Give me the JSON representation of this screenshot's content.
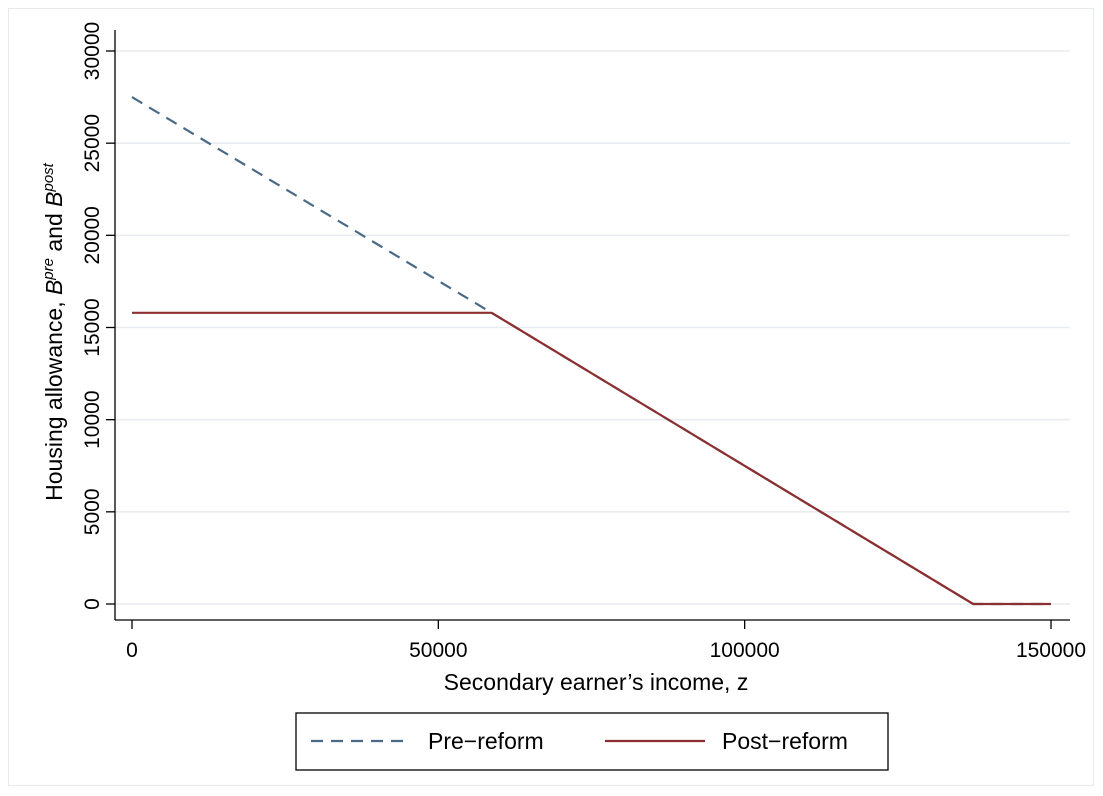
{
  "chart_data": {
    "type": "line",
    "xlabel": "Secondary earner’s income, z",
    "ylabel": "Housing allowance, B^pre and B^post",
    "ylabel_parts": {
      "prefix": "Housing allowance, ",
      "b1": "B",
      "sup1": "pre",
      "mid": " and ",
      "b2": "B",
      "sup2": "post"
    },
    "xlim": [
      0,
      150000
    ],
    "ylim": [
      0,
      30000
    ],
    "x_ticks": [
      0,
      50000,
      100000,
      150000
    ],
    "x_tick_labels": [
      "0",
      "50000",
      "100000",
      "150000"
    ],
    "y_ticks": [
      0,
      5000,
      10000,
      15000,
      20000,
      25000,
      30000
    ],
    "y_tick_labels": [
      "0",
      "5000",
      "10000",
      "15000",
      "20000",
      "25000",
      "30000"
    ],
    "grid": "horizontal",
    "legend_position": "bottom",
    "series": [
      {
        "name": "Pre−reform",
        "color": "#4a6a88",
        "style": "dashed",
        "x": [
          0,
          58700,
          137300,
          150000
        ],
        "y": [
          27500,
          15800,
          0,
          0
        ]
      },
      {
        "name": "Post−reform",
        "color": "#8b2f30",
        "style": "solid",
        "x": [
          0,
          58700,
          137300,
          150000
        ],
        "y": [
          15800,
          15800,
          0,
          0
        ]
      }
    ]
  }
}
